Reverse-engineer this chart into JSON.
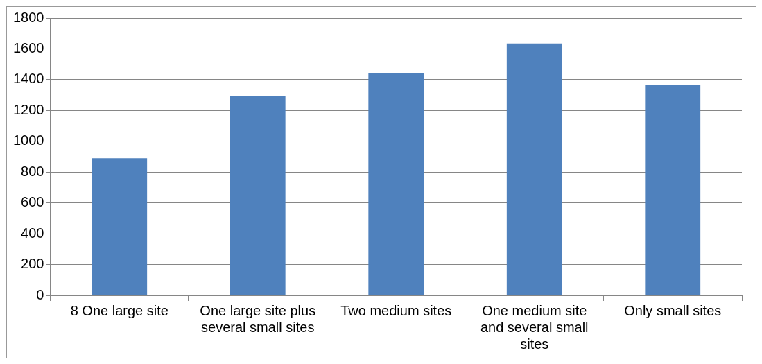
{
  "chart_data": {
    "type": "bar",
    "categories": [
      "8 One large site",
      "One large site plus several small sites",
      "Two medium sites",
      "One medium site and several small sites",
      "Only small sites"
    ],
    "values": [
      890,
      1295,
      1445,
      1635,
      1365
    ],
    "color": "#4f81bd",
    "ylim": [
      0,
      1800
    ],
    "yticks": [
      0,
      200,
      400,
      600,
      800,
      1000,
      1200,
      1400,
      1600,
      1800
    ],
    "grid": "y",
    "legend": false
  }
}
